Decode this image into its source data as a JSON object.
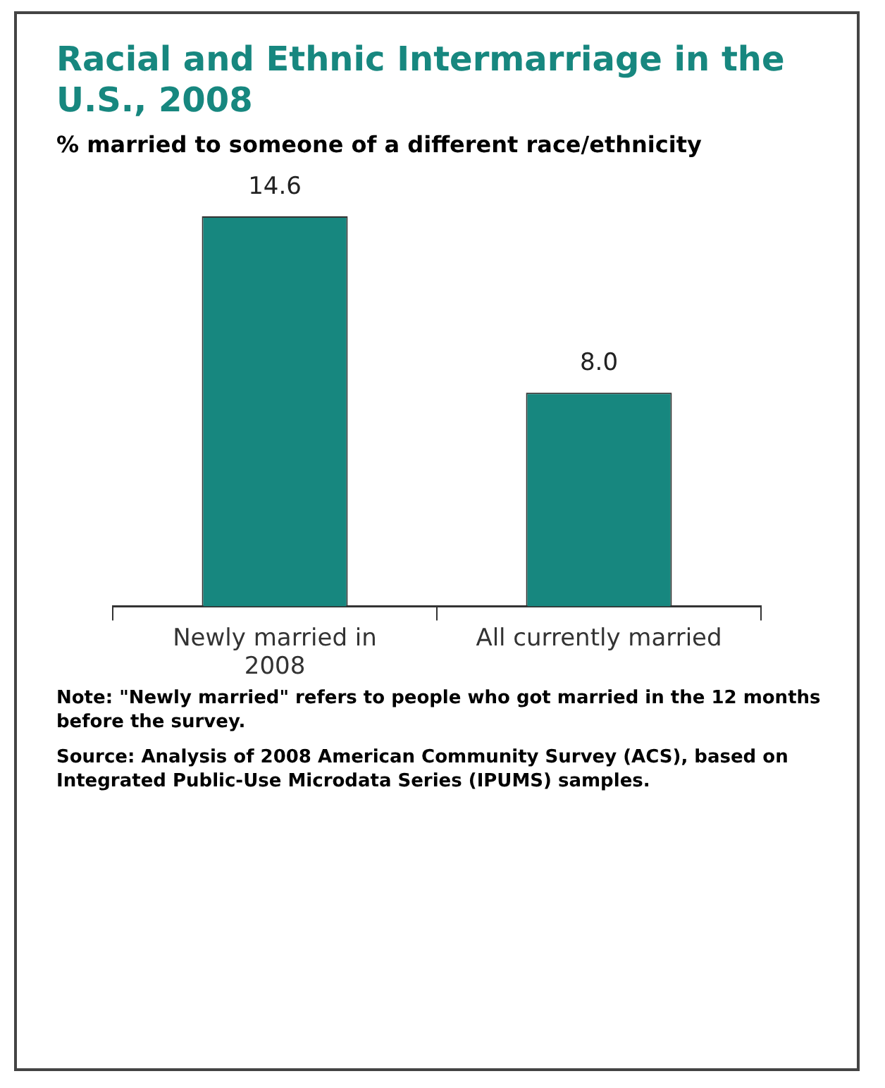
{
  "chart_data": {
    "type": "bar",
    "title": "Racial and Ethnic Intermarriage in the U.S., 2008",
    "subtitle": "% married to someone of a different race/ethnicity",
    "categories": [
      "Newly married in 2008",
      "All currently married"
    ],
    "values": [
      14.6,
      8.0
    ],
    "color": "#17877f",
    "value_labels": [
      "14.6",
      "8.0"
    ],
    "legend": false,
    "annotations": [
      "Note: \"Newly married\" refers to people who got married in the 12 months before the survey.",
      "Source: Analysis of 2008 American Community Survey (ACS), based on Integrated Public-Use Microdata Series (IPUMS) samples."
    ]
  }
}
